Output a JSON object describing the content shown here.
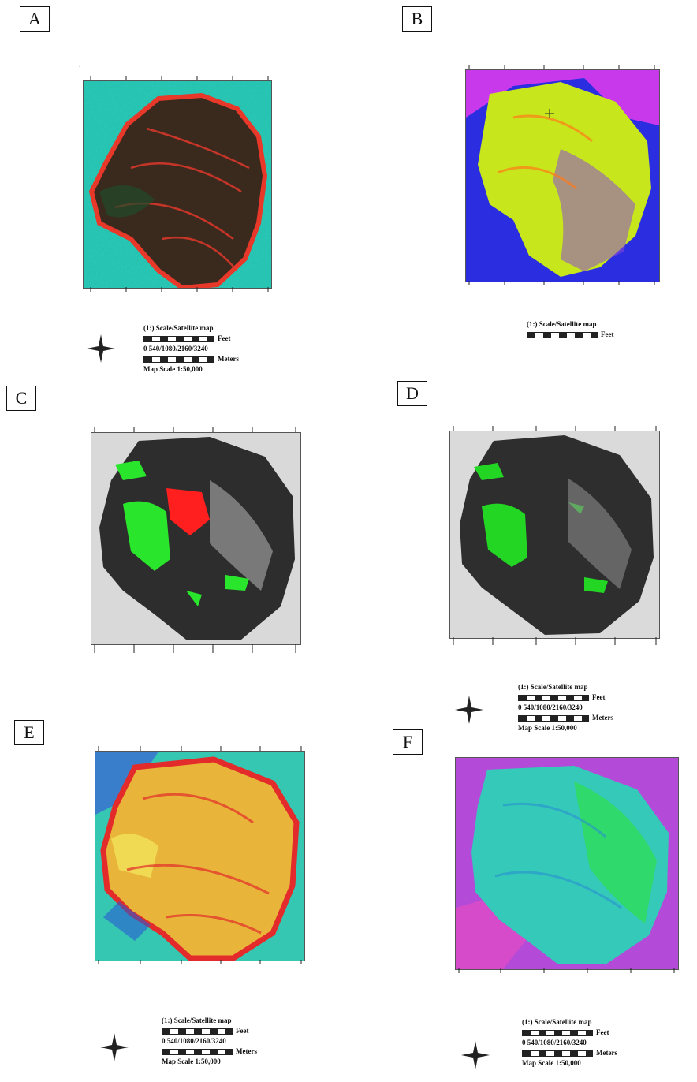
{
  "panels": [
    {
      "id": "A",
      "label": "A"
    },
    {
      "id": "B",
      "label": "B"
    },
    {
      "id": "C",
      "label": "C"
    },
    {
      "id": "D",
      "label": "D"
    },
    {
      "id": "E",
      "label": "E"
    },
    {
      "id": "F",
      "label": "F"
    }
  ],
  "legend": {
    "title": "(1:) Scale/Satellite map",
    "feet_label": "Feet",
    "scale_numbers": "0  540/1080/2160/3240",
    "meters_label": "Meters",
    "map_scale": "Map Scale 1:50,000"
  },
  "colors": {
    "A_bg": "#2fd9c4",
    "A_fg": "#3a2a1e",
    "A_edge": "#e8382a",
    "B_bg": "#2b2ee0",
    "B_fg": "#c8e61c",
    "B_edge": "#ff3df0",
    "C_bg": "#d9d9d9",
    "C_fg": "#2d2d2d",
    "C_green": "#29e62c",
    "C_red": "#ff1f1f",
    "D_bg": "#dadada",
    "D_fg": "#2e2e2e",
    "D_green": "#22d623",
    "E_bg": "#36c7b3",
    "E_fg": "#e8b53a",
    "E_edge": "#e22b2a",
    "F_bg": "#b44bd8",
    "F_fg": "#34c9b8",
    "F_green": "#2ee04a"
  },
  "icons": [
    "north-arrow-compass-icon"
  ]
}
